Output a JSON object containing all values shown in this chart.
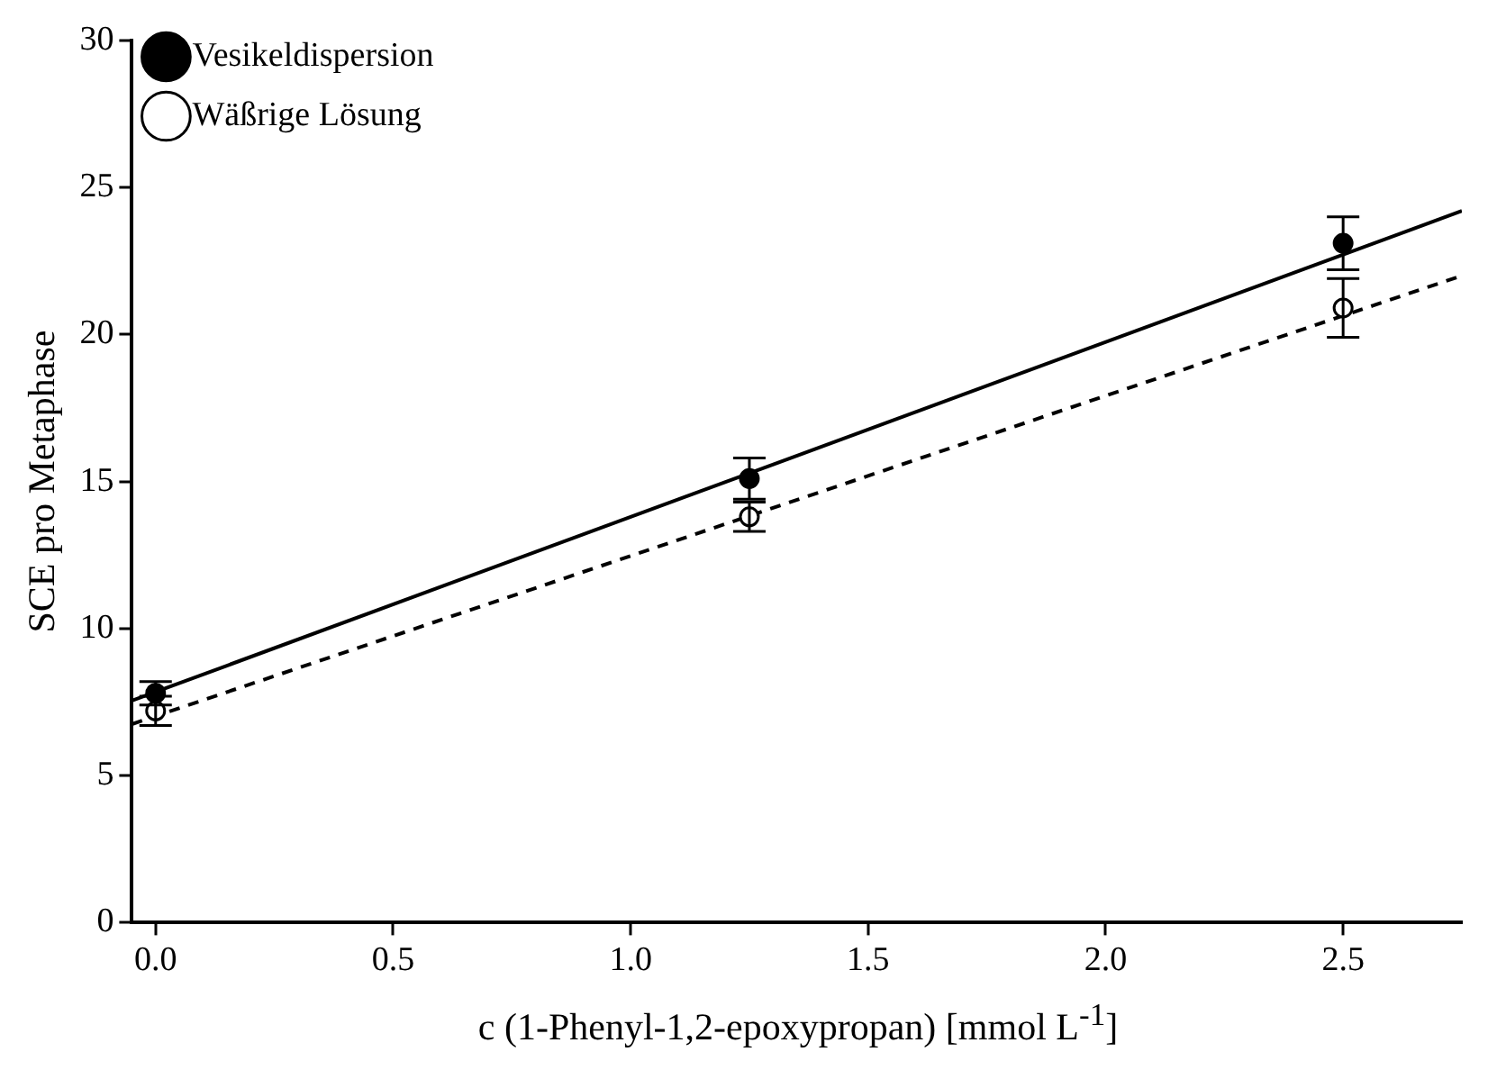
{
  "chart_data": {
    "type": "scatter",
    "xlabel": "c (1-Phenyl-1,2-epoxypropan) [mmol L$^{-1}$]",
    "ylabel": "SCE pro Metaphase",
    "xlim": [
      -0.05,
      2.75
    ],
    "xticks": [
      {
        "value": 0,
        "label": "0.0"
      },
      {
        "value": 0.5,
        "label": "0.5"
      },
      {
        "value": 1,
        "label": "1.0"
      },
      {
        "value": 1.5,
        "label": "1.5"
      },
      {
        "value": 2,
        "label": "2.0"
      },
      {
        "value": 2.5,
        "label": "2.5"
      }
    ],
    "ylim": [
      0,
      30
    ],
    "yticks": [
      0,
      5,
      10,
      15,
      20,
      25,
      30
    ],
    "grid": false,
    "legend": "top left",
    "series": [
      {
        "name": "Vesikeldispersion",
        "color": "#000000",
        "marker": "circle",
        "x": [
          0,
          1.25,
          2.5
        ],
        "values": [
          7.8,
          15.1,
          23.1
        ],
        "errors": [
          0.4,
          0.7,
          0.9
        ]
      },
      {
        "name": "Wäßrige Lösung",
        "color": "#ffffff",
        "marker": "circle",
        "x": [
          0,
          1.25,
          2.5
        ],
        "values": [
          7.2,
          13.8,
          20.9
        ],
        "errors": [
          0.5,
          0.5,
          1.0
        ]
      },
      {
        "type": "line",
        "color": "#000000",
        "line_style": "solid",
        "marker": "none",
        "x": [
          -0.05,
          2.75
        ],
        "values": [
          7.55,
          24.2
        ]
      },
      {
        "type": "line",
        "color": "#000000",
        "line_style": "dashed",
        "marker": "none",
        "x": [
          -0.05,
          2.75
        ],
        "values": [
          6.75,
          22.0
        ]
      }
    ]
  }
}
